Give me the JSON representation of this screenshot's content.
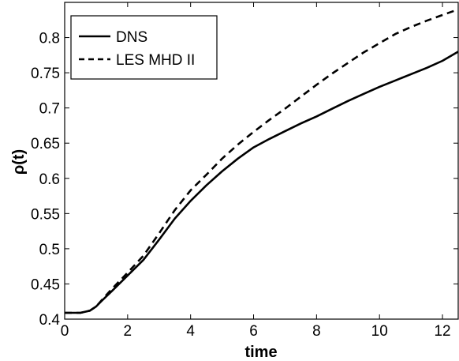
{
  "chart_data": {
    "type": "line",
    "title": "",
    "xlabel": "time",
    "ylabel": "ρ(t)",
    "xlim": [
      0,
      12.5
    ],
    "ylim": [
      0.4,
      0.85
    ],
    "xticks": [
      0,
      2,
      4,
      6,
      8,
      10,
      12
    ],
    "xtick_labels": [
      "0",
      "2",
      "4",
      "6",
      "8",
      "10",
      "12"
    ],
    "yticks": [
      0.4,
      0.45,
      0.5,
      0.55,
      0.6,
      0.65,
      0.7,
      0.75,
      0.8
    ],
    "ytick_labels": [
      "0.4",
      "0.45",
      "0.5",
      "0.55",
      "0.6",
      "0.65",
      "0.7",
      "0.75",
      "0.8"
    ],
    "grid": false,
    "legend": "top-left",
    "series": [
      {
        "name": "DNS",
        "style": "solid",
        "color": "#000000",
        "x": [
          0,
          0.5,
          0.8,
          1.0,
          1.2,
          1.5,
          2.0,
          2.5,
          3.0,
          3.5,
          4.0,
          4.5,
          5.0,
          5.5,
          6.0,
          6.5,
          7.0,
          7.5,
          8.0,
          8.5,
          9.0,
          9.5,
          10.0,
          10.5,
          11.0,
          11.5,
          12.0,
          12.5
        ],
        "y": [
          0.409,
          0.409,
          0.412,
          0.418,
          0.427,
          0.44,
          0.462,
          0.484,
          0.513,
          0.543,
          0.568,
          0.59,
          0.61,
          0.628,
          0.644,
          0.656,
          0.667,
          0.678,
          0.688,
          0.699,
          0.71,
          0.72,
          0.73,
          0.739,
          0.748,
          0.757,
          0.767,
          0.78
        ]
      },
      {
        "name": "LES MHD II",
        "style": "dashed",
        "color": "#000000",
        "x": [
          0,
          0.5,
          0.8,
          1.0,
          1.2,
          1.5,
          2.0,
          2.5,
          3.0,
          3.5,
          4.0,
          4.5,
          5.0,
          5.5,
          6.0,
          6.5,
          7.0,
          7.5,
          8.0,
          8.5,
          9.0,
          9.5,
          10.0,
          10.5,
          11.0,
          11.5,
          12.0,
          12.5
        ],
        "y": [
          0.409,
          0.409,
          0.412,
          0.418,
          0.428,
          0.443,
          0.466,
          0.49,
          0.522,
          0.555,
          0.583,
          0.605,
          0.628,
          0.648,
          0.666,
          0.683,
          0.699,
          0.716,
          0.733,
          0.749,
          0.764,
          0.779,
          0.792,
          0.805,
          0.815,
          0.824,
          0.832,
          0.84
        ]
      }
    ]
  }
}
